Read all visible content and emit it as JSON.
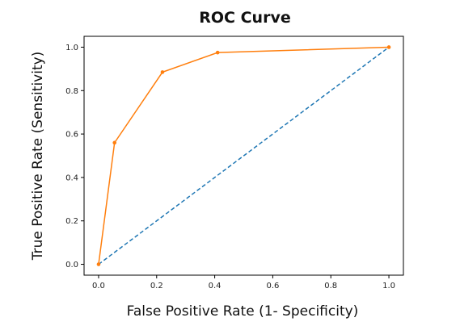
{
  "chart_data": {
    "type": "line",
    "title": "ROC Curve",
    "xlabel": "False Positive Rate (1- Specificity)",
    "ylabel": "True Positive Rate (Sensitivity)",
    "xlim": [
      -0.05,
      1.05
    ],
    "ylim": [
      -0.05,
      1.05
    ],
    "xticks": [
      "0.0",
      "0.2",
      "0.4",
      "0.6",
      "0.8",
      "1.0"
    ],
    "yticks": [
      "0.0",
      "0.2",
      "0.4",
      "0.6",
      "0.8",
      "1.0"
    ],
    "grid": false,
    "series": [
      {
        "style": "solid-with-markers",
        "color": "#ff7f0e",
        "x": [
          0.0,
          0.055,
          0.22,
          0.41,
          1.0
        ],
        "y": [
          0.0,
          0.56,
          0.885,
          0.975,
          1.0
        ]
      },
      {
        "style": "dashed",
        "color": "#1f77b4",
        "x": [
          0.0,
          1.0
        ],
        "y": [
          0.0,
          1.0
        ]
      }
    ]
  }
}
